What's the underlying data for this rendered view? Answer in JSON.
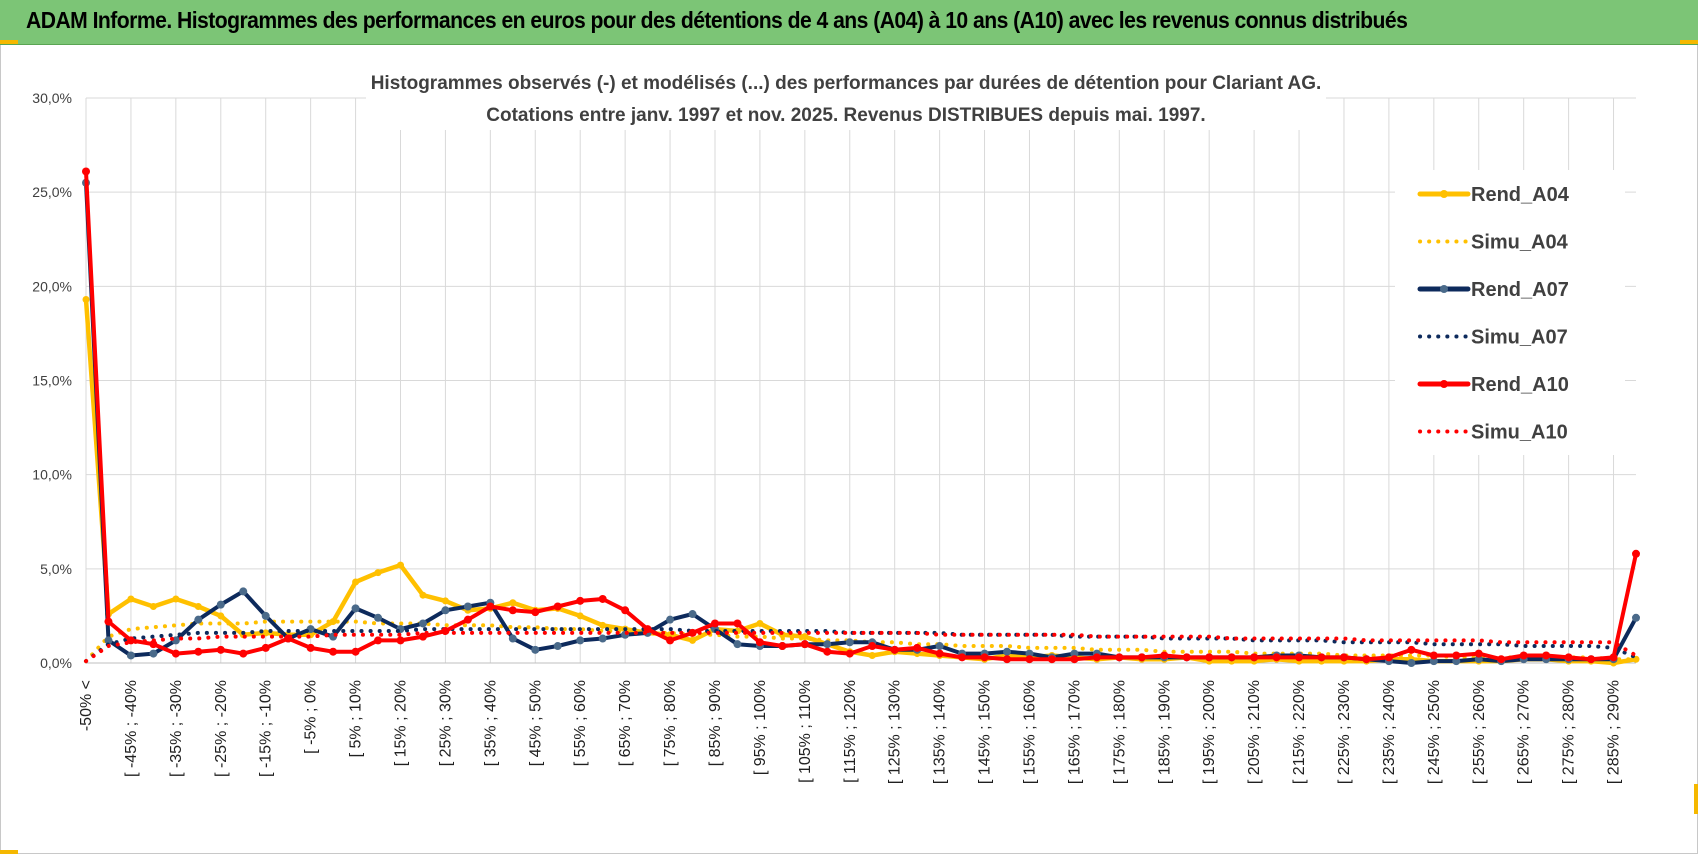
{
  "header": {
    "title": "ADAM Informe. Histogrammes des performances en euros pour des détentions de 4 ans (A04) à 10 ans (A10) avec les revenus connus distribués"
  },
  "colors": {
    "banner": "#7cc576",
    "A04": "#ffc000",
    "A07": "#0d2a5c",
    "A10": "#ff0000",
    "grid": "#d9d9d9"
  },
  "chart_data": {
    "type": "line",
    "title_line1": "Histogrammes observés (-) et modélisés (...) des performances par durées de détention pour Clariant AG.",
    "title_line2": "Cotations entre janv. 1997 et nov. 2025. Revenus DISTRIBUES depuis mai. 1997.",
    "ylim": [
      0,
      30
    ],
    "yticks": [
      "0,0%",
      "5,0%",
      "10,0%",
      "15,0%",
      "20,0%",
      "25,0%",
      "30,0%"
    ],
    "x_labels": [
      "-50% <",
      "[ -45% ; -40%",
      "[ -35% ; -30%",
      "[ -25% ; -20%",
      "[ -15% ; -10%",
      "[ -5% ; 0%",
      "[ 5% ; 10%",
      "[ 15% ; 20%",
      "[ 25% ; 30%",
      "[ 35% ; 40%",
      "[ 45% ; 50%",
      "[ 55% ; 60%",
      "[ 65% ; 70%",
      "[ 75% ; 80%",
      "[ 85% ; 90%",
      "[ 95% ; 100%",
      "[ 105% ; 110%",
      "[ 115% ; 120%",
      "[ 125% ; 130%",
      "[ 135% ; 140%",
      "[ 145% ; 150%",
      "[ 155% ; 160%",
      "[ 165% ; 170%",
      "[ 175% ; 180%",
      "[ 185% ; 190%",
      "[ 195% ; 200%",
      "[ 205% ; 210%",
      "[ 215% ; 220%",
      "[ 225% ; 230%",
      "[ 235% ; 240%",
      "[ 245% ; 250%",
      "[ 255% ; 260%",
      "[ 265% ; 270%",
      "[ 275% ; 280%",
      "[ 285% ; 290%"
    ],
    "n_points": 70,
    "series": [
      {
        "name": "Rend_A04",
        "style": "solid",
        "color": "#ffc000",
        "values": [
          19.3,
          2.6,
          3.4,
          3.0,
          3.4,
          3.0,
          2.5,
          1.5,
          1.6,
          1.5,
          1.5,
          2.2,
          4.3,
          4.8,
          5.2,
          3.6,
          3.3,
          2.8,
          2.9,
          3.2,
          2.8,
          2.9,
          2.5,
          2.0,
          1.8,
          1.6,
          1.5,
          1.2,
          1.8,
          1.7,
          2.1,
          1.5,
          1.4,
          1.0,
          0.6,
          0.4,
          0.6,
          0.5,
          0.4,
          0.3,
          0.2,
          0.4,
          0.3,
          0.4,
          0.3,
          0.2,
          0.3,
          0.2,
          0.2,
          0.3,
          0.1,
          0.1,
          0.1,
          0.2,
          0.1,
          0.1,
          0.1,
          0.1,
          0.2,
          0.2,
          0.1,
          0.1,
          0.1,
          0.1,
          0.2,
          0.2,
          0.1,
          0.1,
          0.0,
          0.2
        ]
      },
      {
        "name": "Simu_A04",
        "style": "dotted",
        "color": "#ffc000",
        "values": [
          0.1,
          1.4,
          1.8,
          1.9,
          2.0,
          2.1,
          2.1,
          2.1,
          2.2,
          2.2,
          2.2,
          2.2,
          2.2,
          2.1,
          2.1,
          2.1,
          2.0,
          2.0,
          2.0,
          1.9,
          1.9,
          1.8,
          1.8,
          1.7,
          1.7,
          1.6,
          1.6,
          1.5,
          1.5,
          1.4,
          1.4,
          1.3,
          1.3,
          1.2,
          1.2,
          1.1,
          1.1,
          1.0,
          1.0,
          0.9,
          0.9,
          0.9,
          0.8,
          0.8,
          0.8,
          0.7,
          0.7,
          0.7,
          0.6,
          0.6,
          0.6,
          0.6,
          0.5,
          0.5,
          0.5,
          0.5,
          0.4,
          0.4,
          0.4,
          0.4,
          0.4,
          0.3,
          0.3,
          0.3,
          0.3,
          0.3,
          0.3,
          0.3,
          0.2,
          0.2
        ]
      },
      {
        "name": "Rend_A07",
        "style": "solid",
        "color": "#0d2a5c",
        "values": [
          25.5,
          1.2,
          0.4,
          0.5,
          1.2,
          2.3,
          3.1,
          3.8,
          2.5,
          1.3,
          1.8,
          1.4,
          2.9,
          2.4,
          1.8,
          2.1,
          2.8,
          3.0,
          3.2,
          1.3,
          0.7,
          0.9,
          1.2,
          1.3,
          1.5,
          1.6,
          2.3,
          2.6,
          1.8,
          1.0,
          0.9,
          0.9,
          1.0,
          1.0,
          1.1,
          1.1,
          0.7,
          0.7,
          0.9,
          0.5,
          0.5,
          0.6,
          0.5,
          0.3,
          0.5,
          0.5,
          0.3,
          0.3,
          0.3,
          0.3,
          0.3,
          0.3,
          0.3,
          0.4,
          0.4,
          0.3,
          0.3,
          0.2,
          0.1,
          0.0,
          0.1,
          0.1,
          0.2,
          0.1,
          0.2,
          0.2,
          0.2,
          0.2,
          0.2,
          2.4
        ]
      },
      {
        "name": "Simu_A07",
        "style": "dotted",
        "color": "#0d2a5c",
        "values": [
          0.1,
          1.0,
          1.3,
          1.4,
          1.5,
          1.6,
          1.6,
          1.6,
          1.7,
          1.7,
          1.7,
          1.7,
          1.7,
          1.7,
          1.7,
          1.8,
          1.8,
          1.8,
          1.8,
          1.8,
          1.8,
          1.8,
          1.8,
          1.8,
          1.8,
          1.8,
          1.8,
          1.7,
          1.7,
          1.7,
          1.7,
          1.7,
          1.7,
          1.7,
          1.6,
          1.6,
          1.6,
          1.6,
          1.6,
          1.5,
          1.5,
          1.5,
          1.5,
          1.5,
          1.4,
          1.4,
          1.4,
          1.4,
          1.3,
          1.3,
          1.3,
          1.3,
          1.2,
          1.2,
          1.2,
          1.2,
          1.1,
          1.1,
          1.1,
          1.1,
          1.0,
          1.0,
          1.0,
          1.0,
          0.9,
          0.9,
          0.9,
          0.9,
          0.8,
          0.3
        ]
      },
      {
        "name": "Rend_A10",
        "style": "solid",
        "color": "#ff0000",
        "values": [
          26.1,
          2.2,
          1.2,
          1.0,
          0.5,
          0.6,
          0.7,
          0.5,
          0.8,
          1.3,
          0.8,
          0.6,
          0.6,
          1.2,
          1.2,
          1.4,
          1.7,
          2.3,
          3.0,
          2.8,
          2.7,
          3.0,
          3.3,
          3.4,
          2.8,
          1.8,
          1.2,
          1.6,
          2.1,
          2.1,
          1.1,
          0.9,
          1.0,
          0.6,
          0.5,
          0.9,
          0.7,
          0.8,
          0.5,
          0.3,
          0.3,
          0.2,
          0.2,
          0.2,
          0.2,
          0.3,
          0.3,
          0.3,
          0.4,
          0.3,
          0.3,
          0.3,
          0.3,
          0.3,
          0.3,
          0.3,
          0.3,
          0.2,
          0.3,
          0.7,
          0.4,
          0.4,
          0.5,
          0.2,
          0.4,
          0.4,
          0.3,
          0.2,
          0.3,
          5.8
        ]
      },
      {
        "name": "Simu_A10",
        "style": "dotted",
        "color": "#ff0000",
        "values": [
          0.1,
          0.9,
          1.1,
          1.2,
          1.3,
          1.3,
          1.4,
          1.4,
          1.4,
          1.4,
          1.4,
          1.5,
          1.5,
          1.5,
          1.5,
          1.6,
          1.6,
          1.6,
          1.6,
          1.6,
          1.6,
          1.6,
          1.6,
          1.6,
          1.6,
          1.6,
          1.6,
          1.6,
          1.6,
          1.6,
          1.6,
          1.6,
          1.6,
          1.6,
          1.6,
          1.6,
          1.6,
          1.6,
          1.5,
          1.5,
          1.5,
          1.5,
          1.5,
          1.5,
          1.5,
          1.4,
          1.4,
          1.4,
          1.4,
          1.4,
          1.4,
          1.3,
          1.3,
          1.3,
          1.3,
          1.3,
          1.3,
          1.2,
          1.2,
          1.2,
          1.2,
          1.2,
          1.2,
          1.1,
          1.1,
          1.1,
          1.1,
          1.1,
          1.1,
          0.4
        ]
      }
    ],
    "legend": {
      "position": "right",
      "entries": [
        "Rend_A04",
        "Simu_A04",
        "Rend_A07",
        "Simu_A07",
        "Rend_A10",
        "Simu_A10"
      ]
    }
  }
}
